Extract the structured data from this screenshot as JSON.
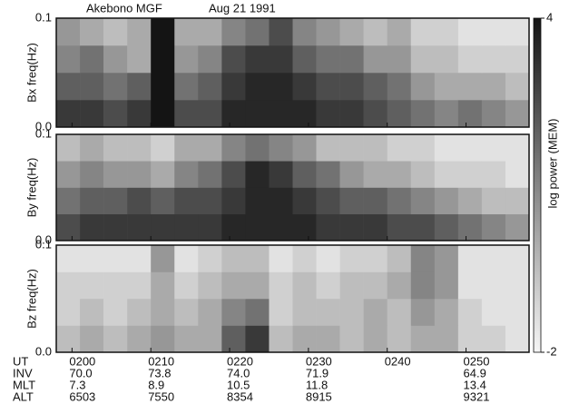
{
  "chart_data": {
    "type": "spectrogram",
    "title": "Akebono MGF",
    "subtitle": "Aug 21 1991",
    "x_label": "UT",
    "xlim": [
      -2,
      58
    ],
    "xticks": [
      {
        "value": 0,
        "label": "0200"
      },
      {
        "value": 10,
        "label": "0210"
      },
      {
        "value": 20,
        "label": "0220"
      },
      {
        "value": 30,
        "label": "0230"
      },
      {
        "value": 40,
        "label": "0240"
      },
      {
        "value": 50,
        "label": "0250"
      }
    ],
    "bins": [
      -2,
      1,
      4,
      7,
      10,
      13,
      16,
      19,
      22,
      25,
      28,
      31,
      34,
      37,
      40,
      43,
      46,
      49,
      52,
      55,
      58
    ],
    "freq_bins": [
      0,
      0.025,
      0.05,
      0.075,
      0.1
    ],
    "ephemeris": [
      {
        "name": "INV",
        "values": [
          "70.0",
          "73.8",
          "74.0",
          "71.9",
          null,
          "64.9"
        ]
      },
      {
        "name": "MLT",
        "values": [
          "7.3",
          "8.9",
          "10.5",
          "11.8",
          null,
          "13.4"
        ]
      },
      {
        "name": "ALT",
        "values": [
          "6503",
          "7550",
          "8354",
          "8915",
          null,
          "9321"
        ]
      }
    ],
    "colorbar_label": "log power (MEM)",
    "clim": [
      -2,
      4
    ],
    "cticks": [
      4,
      -2
    ],
    "panels": [
      {
        "ylabel": "Bx freq(Hz)",
        "ylim": [
          0,
          0.1
        ],
        "yticks": [
          {
            "value": 0,
            "label": "0.0"
          },
          0.1
        ],
        "z": [
          [
            3,
            3,
            2.5,
            3,
            4,
            2.5,
            2.5,
            3.5,
            3.5,
            3.5,
            3.5,
            3,
            3,
            2.5,
            2,
            1.5,
            1,
            1.5,
            1,
            0.5
          ],
          [
            2,
            2,
            1.5,
            2,
            4,
            1.5,
            2,
            3,
            3.5,
            3.5,
            3,
            2.5,
            2.5,
            2,
            1.5,
            0.5,
            0,
            0,
            0,
            -0.5
          ],
          [
            1,
            1.5,
            0.5,
            0,
            4,
            0.5,
            1,
            2.5,
            3,
            3,
            2,
            1.5,
            1.5,
            0.5,
            0.5,
            -0.5,
            -0.5,
            -1,
            -1,
            -1
          ],
          [
            0.5,
            0,
            -0.5,
            0,
            4,
            0,
            0,
            1,
            1.5,
            2.5,
            1,
            0.5,
            0,
            -0.5,
            0,
            -1,
            -1,
            -1.5,
            -1.5,
            -1.5
          ]
        ]
      },
      {
        "ylabel": "By freq(Hz)",
        "ylim": [
          0,
          0.1
        ],
        "yticks": [
          {
            "value": 0,
            "label": "0.0"
          },
          0.1
        ],
        "z": [
          [
            2.5,
            3,
            3,
            3,
            3,
            3,
            3,
            3.5,
            3.5,
            3.5,
            3.5,
            3,
            3,
            3,
            2.5,
            2.5,
            2,
            1.5,
            1,
            0.5
          ],
          [
            1.5,
            2,
            2,
            2.5,
            2,
            2.5,
            2.5,
            3,
            3.5,
            3.5,
            3,
            2.5,
            2,
            2,
            1.5,
            1,
            0.5,
            0,
            -0.5,
            -0.5
          ],
          [
            0.5,
            1,
            0.5,
            0.5,
            0,
            1,
            1.5,
            2.5,
            3.5,
            3,
            2,
            1.5,
            0.5,
            0,
            0,
            -0.5,
            -1,
            -1,
            -1,
            -1.5
          ],
          [
            -0.5,
            0,
            -0.5,
            -0.5,
            -1,
            0,
            0,
            1,
            1.5,
            1,
            0.5,
            -0.5,
            -0.5,
            -0.5,
            -1,
            -1,
            -1.5,
            -1.5,
            -1.5,
            -1.5
          ]
        ]
      },
      {
        "ylabel": "Bz freq(Hz)",
        "ylim": [
          0,
          0.1
        ],
        "yticks": [
          {
            "value": 0,
            "label": "0.0"
          },
          0.1
        ],
        "z": [
          [
            -0.5,
            0,
            -0.5,
            0,
            0.5,
            0,
            0,
            2,
            3,
            -0.5,
            0,
            0,
            -0.5,
            0,
            -0.5,
            0,
            0,
            -1,
            -1,
            -1.5
          ],
          [
            -1,
            -0.5,
            -1,
            -0.5,
            0,
            -0.5,
            0,
            1,
            1.5,
            -1,
            -0.5,
            -0.5,
            -0.5,
            0,
            -0.5,
            0.5,
            0,
            -1,
            -1.5,
            -1.5
          ],
          [
            -1,
            -1,
            -1,
            -1,
            0,
            -1,
            -0.5,
            0,
            0,
            -1,
            -0.5,
            -1,
            -0.5,
            -0.5,
            0,
            1,
            0.5,
            -1.5,
            -1.5,
            -1.5
          ],
          [
            -1.5,
            -1.5,
            -1.5,
            -1.5,
            0.5,
            -1.5,
            -1,
            -0.5,
            -0.5,
            -1.5,
            -1,
            -1.5,
            -1,
            -1,
            -0.5,
            1,
            0.5,
            -1.5,
            -1.5,
            -1.5
          ]
        ]
      }
    ]
  }
}
